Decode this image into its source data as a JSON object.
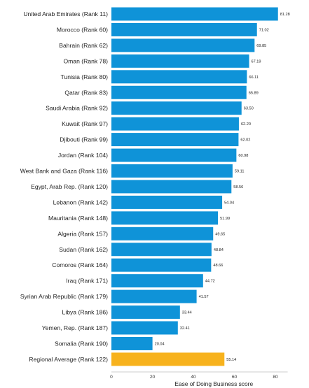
{
  "chart_data": {
    "type": "bar",
    "orientation": "horizontal",
    "categories": [
      "United Arab Emirates (Rank 11)",
      "Morocco (Rank 60)",
      "Bahrain (Rank 62)",
      "Oman (Rank 78)",
      "Tunisia (Rank 80)",
      "Qatar (Rank 83)",
      "Saudi Arabia (Rank 92)",
      "Kuwait (Rank 97)",
      "Djibouti (Rank 99)",
      "Jordan (Rank 104)",
      "West Bank and Gaza (Rank 116)",
      "Egypt, Arab Rep. (Rank 120)",
      "Lebanon (Rank 142)",
      "Mauritania (Rank 148)",
      "Algeria (Rank 157)",
      "Sudan (Rank 162)",
      "Comoros (Rank 164)",
      "Iraq (Rank 171)",
      "Syrian Arab Republic (Rank 179)",
      "Libya (Rank 186)",
      "Yemen, Rep. (Rank 187)",
      "Somalia (Rank 190)",
      "Regional Average (Rank 122)"
    ],
    "values": [
      81.28,
      71.02,
      69.85,
      67.19,
      66.11,
      65.89,
      63.5,
      62.2,
      62.02,
      60.98,
      59.11,
      58.56,
      54.04,
      51.99,
      49.65,
      48.84,
      48.66,
      44.72,
      41.57,
      33.44,
      32.41,
      20.04,
      55.14
    ],
    "value_labels": [
      "81.28",
      "71.02",
      "69.85",
      "67.19",
      "66.11",
      "65.89",
      "63.50",
      "62.20",
      "62.02",
      "60.98",
      "59.11",
      "58.56",
      "54.04",
      "51.99",
      "49.65",
      "48.84",
      "48.66",
      "44.72",
      "41.57",
      "33.44",
      "32.41",
      "20.04",
      "55.14"
    ],
    "highlight_index": 22,
    "xlabel": "Ease of Doing Business score",
    "x_ticks": [
      "0",
      "20",
      "40",
      "60",
      "80"
    ],
    "xlim": [
      0,
      86
    ],
    "grid": false,
    "legend": "none",
    "colors": {
      "bar": "#0f93d8",
      "highlight": "#f7b21d",
      "axis": "#bdbdbd"
    }
  }
}
